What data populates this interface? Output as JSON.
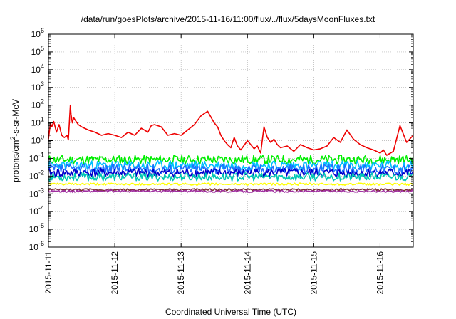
{
  "chart_data": {
    "type": "line",
    "title": "/data/run/goesPlots/archive/2015-11-16/11:00/flux/../flux/5daysMoonFluxes.txt",
    "xlabel": "Coordinated Universal Time (UTC)",
    "ylabel": {
      "base": "protons/cm",
      "sup": "2",
      "rest": "-s-sr-MeV"
    },
    "yscale": "log",
    "ylim": [
      1e-06,
      1000000.0
    ],
    "xlim": [
      0,
      5.5
    ],
    "x_unit": "days since 2015-11-11 00:00 UTC",
    "x_ticks": [
      {
        "x": 0,
        "label": "2015-11-11"
      },
      {
        "x": 1,
        "label": "2015-11-12"
      },
      {
        "x": 2,
        "label": "2015-11-13"
      },
      {
        "x": 3,
        "label": "2015-11-14"
      },
      {
        "x": 4,
        "label": "2015-11-15"
      },
      {
        "x": 5,
        "label": "2015-11-16"
      }
    ],
    "y_ticks": [
      {
        "exp": -6
      },
      {
        "exp": -5
      },
      {
        "exp": -4
      },
      {
        "exp": -3
      },
      {
        "exp": -2
      },
      {
        "exp": -1
      },
      {
        "exp": 0
      },
      {
        "exp": 1
      },
      {
        "exp": 2
      },
      {
        "exp": 3
      },
      {
        "exp": 4
      },
      {
        "exp": 5
      },
      {
        "exp": 6
      }
    ],
    "grid": true,
    "legend": "none",
    "series": [
      {
        "color": "#ee0000",
        "x": [
          0,
          0.03,
          0.05,
          0.08,
          0.12,
          0.16,
          0.2,
          0.24,
          0.28,
          0.3,
          0.33,
          0.34,
          0.36,
          0.38,
          0.4,
          0.45,
          0.5,
          0.6,
          0.7,
          0.8,
          0.9,
          1.0,
          1.1,
          1.2,
          1.3,
          1.4,
          1.5,
          1.55,
          1.6,
          1.7,
          1.8,
          1.9,
          2.0,
          2.1,
          2.2,
          2.3,
          2.4,
          2.5,
          2.55,
          2.6,
          2.65,
          2.7,
          2.75,
          2.8,
          2.85,
          2.9,
          3.0,
          3.05,
          3.1,
          3.15,
          3.2,
          3.25,
          3.3,
          3.35,
          3.4,
          3.45,
          3.5,
          3.6,
          3.7,
          3.8,
          3.9,
          4.0,
          4.1,
          4.2,
          4.3,
          4.4,
          4.5,
          4.6,
          4.7,
          4.8,
          4.9,
          5.0,
          5.05,
          5.1,
          5.2,
          5.3,
          5.4,
          5.5
        ],
        "y": [
          1.2,
          10,
          6,
          12,
          3,
          8,
          2,
          1.5,
          2,
          1.1,
          100,
          30,
          10,
          20,
          15,
          8,
          6,
          4,
          3,
          2,
          2.5,
          2,
          1.5,
          3,
          2,
          5,
          3,
          7,
          8,
          6,
          2,
          2.5,
          2,
          4,
          8,
          25,
          45,
          10,
          6,
          2,
          1,
          0.6,
          0.4,
          1.5,
          0.5,
          0.3,
          1,
          0.6,
          0.35,
          0.5,
          0.2,
          6,
          1.5,
          0.8,
          1.2,
          0.6,
          0.4,
          0.5,
          0.25,
          0.6,
          0.4,
          0.3,
          0.35,
          0.5,
          1.5,
          0.8,
          4,
          1.2,
          0.6,
          0.4,
          0.3,
          0.2,
          0.3,
          0.15,
          0.25,
          7,
          0.8,
          2
        ]
      },
      {
        "color": "#00ee00",
        "base": 0.085,
        "amp": 0.5,
        "seed": 11
      },
      {
        "color": "#00bfff",
        "base": 0.04,
        "amp": 0.55,
        "seed": 23
      },
      {
        "color": "#1e6fff",
        "base": 0.025,
        "amp": 0.55,
        "seed": 37
      },
      {
        "color": "#0000cc",
        "base": 0.015,
        "amp": 0.5,
        "seed": 41
      },
      {
        "color": "#00c8b4",
        "base": 0.009,
        "amp": 0.45,
        "seed": 53
      },
      {
        "color": "#ffff00",
        "base": 0.0035,
        "amp": 0.12,
        "seed": 61
      },
      {
        "color": "#7a3030",
        "base": 0.0017,
        "amp": 0.12,
        "seed": 73
      },
      {
        "color": "#a030a0",
        "base": 0.0014,
        "amp": 0.12,
        "seed": 89
      }
    ]
  }
}
